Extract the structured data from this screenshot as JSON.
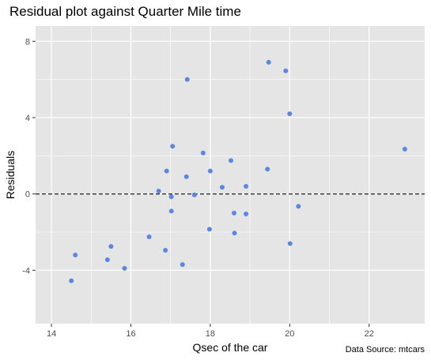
{
  "chart_data": {
    "type": "scatter",
    "title": "Residual plot against Quarter Mile time",
    "xlabel": "Qsec of the car",
    "ylabel": "Residuals",
    "caption": "Data Source: mtcars",
    "xlim": [
      13.6,
      23.4
    ],
    "ylim": [
      -6.8,
      8.8
    ],
    "x_ticks": [
      14,
      16,
      18,
      20,
      22
    ],
    "y_ticks": [
      -4,
      0,
      4,
      8
    ],
    "x_tick_labels": [
      "14",
      "16",
      "18",
      "20",
      "22"
    ],
    "y_tick_labels": [
      "-4",
      "0",
      "4",
      "8"
    ],
    "grid": true,
    "reference_line": {
      "y": 0,
      "style": "dashed"
    },
    "colors": {
      "panel_background": "#e5e5e5",
      "grid": "#ffffff",
      "point": "#5a87e0",
      "reference_line": "#333333"
    },
    "points": [
      {
        "x": 14.5,
        "y": -4.55
      },
      {
        "x": 14.6,
        "y": -3.2
      },
      {
        "x": 15.41,
        "y": -3.45
      },
      {
        "x": 15.5,
        "y": -2.75
      },
      {
        "x": 15.84,
        "y": -3.9
      },
      {
        "x": 16.46,
        "y": -2.25
      },
      {
        "x": 16.7,
        "y": 0.15
      },
      {
        "x": 16.87,
        "y": -2.95
      },
      {
        "x": 16.9,
        "y": 1.2
      },
      {
        "x": 17.02,
        "y": -0.15
      },
      {
        "x": 17.02,
        "y": -0.9
      },
      {
        "x": 17.05,
        "y": 2.5
      },
      {
        "x": 17.3,
        "y": -3.7
      },
      {
        "x": 17.4,
        "y": 0.9
      },
      {
        "x": 17.42,
        "y": 6.0
      },
      {
        "x": 17.6,
        "y": -0.05
      },
      {
        "x": 17.82,
        "y": 2.15
      },
      {
        "x": 17.98,
        "y": -1.85
      },
      {
        "x": 18.0,
        "y": 1.2
      },
      {
        "x": 18.3,
        "y": 0.35
      },
      {
        "x": 18.52,
        "y": 1.75
      },
      {
        "x": 18.6,
        "y": -1.0
      },
      {
        "x": 18.61,
        "y": -2.05
      },
      {
        "x": 18.9,
        "y": -1.05
      },
      {
        "x": 18.9,
        "y": 0.4
      },
      {
        "x": 19.44,
        "y": 1.3
      },
      {
        "x": 19.47,
        "y": 6.9
      },
      {
        "x": 19.9,
        "y": 6.45
      },
      {
        "x": 20.0,
        "y": 4.2
      },
      {
        "x": 20.01,
        "y": -2.6
      },
      {
        "x": 20.22,
        "y": -0.65
      },
      {
        "x": 22.9,
        "y": 2.35
      }
    ]
  }
}
